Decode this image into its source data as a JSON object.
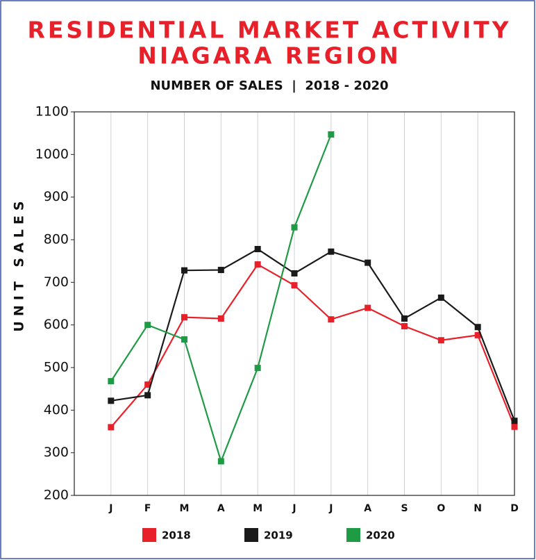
{
  "chart_data": {
    "type": "line",
    "title": [
      "RESIDENTIAL MARKET ACTIVITY",
      "NIAGARA REGION"
    ],
    "subtitle": "NUMBER OF SALES  |  2018 - 2020",
    "y_label": "UNIT SALES",
    "categories": [
      "J",
      "F",
      "M",
      "A",
      "M",
      "J",
      "J",
      "A",
      "S",
      "O",
      "N",
      "D"
    ],
    "series": [
      {
        "name": "2018",
        "color": "#e8202a",
        "values": [
          360,
          460,
          618,
          615,
          742,
          693,
          613,
          640,
          597,
          564,
          576,
          361
        ]
      },
      {
        "name": "2019",
        "color": "#1a1a1a",
        "values": [
          422,
          435,
          728,
          729,
          778,
          721,
          772,
          746,
          615,
          664,
          595,
          375
        ]
      },
      {
        "name": "2020",
        "color": "#1f9a45",
        "values": [
          468,
          600,
          566,
          280,
          499,
          829,
          1047,
          null,
          null,
          null,
          null,
          null
        ]
      }
    ],
    "ylim": [
      200,
      1100
    ],
    "yticks": [
      200,
      300,
      400,
      500,
      600,
      700,
      800,
      900,
      1000,
      1100
    ],
    "grid": "x"
  }
}
